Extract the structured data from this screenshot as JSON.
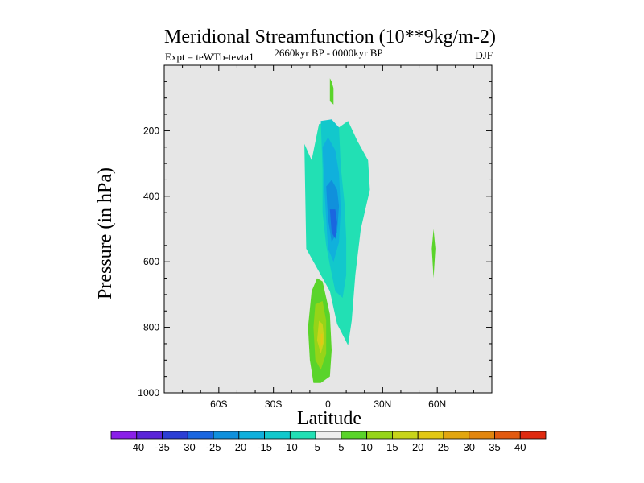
{
  "chart_data": {
    "type": "heatmap",
    "title": "Meridional Streamfunction (10**9kg/m-2)",
    "left_label": "Expt = teWTb-tevta1",
    "center_label": "2660kyr BP - 0000kyr BP",
    "right_label": "DJF",
    "xlabel": "Latitude",
    "ylabel": "Pressure (in hPa)",
    "xlim": [
      -90,
      90
    ],
    "ylim": [
      1000,
      0
    ],
    "x_ticks": [
      {
        "value": -60,
        "label": "60S"
      },
      {
        "value": -30,
        "label": "30S"
      },
      {
        "value": 0,
        "label": "0"
      },
      {
        "value": 30,
        "label": "30N"
      },
      {
        "value": 60,
        "label": "60N"
      }
    ],
    "y_ticks": [
      {
        "value": 200,
        "label": "200"
      },
      {
        "value": 400,
        "label": "400"
      },
      {
        "value": 600,
        "label": "600"
      },
      {
        "value": 800,
        "label": "800"
      },
      {
        "value": 1000,
        "label": "1000"
      }
    ],
    "background_color": "#e6e6e6",
    "colorbar": {
      "levels": [
        "-40",
        "-35",
        "-30",
        "-25",
        "-20",
        "-15",
        "-10",
        "-5",
        "5",
        "10",
        "15",
        "20",
        "25",
        "30",
        "35",
        "40"
      ],
      "colors": [
        "#8a20e8",
        "#5a24d8",
        "#2c3ed4",
        "#1a66e0",
        "#1090dc",
        "#10b0dc",
        "#12c8cc",
        "#22e0b4",
        "#eeeeee",
        "#5ad42a",
        "#96d418",
        "#c8d41a",
        "#e2c814",
        "#e2a610",
        "#e2860e",
        "#e25a10",
        "#e02a10"
      ]
    },
    "regions": [
      {
        "name": "upper-negative-cell",
        "color": "#22e0b4",
        "points": [
          [
            -13,
            240
          ],
          [
            -12,
            560
          ],
          [
            -6,
            620
          ],
          [
            1,
            690
          ],
          [
            5,
            790
          ],
          [
            11,
            855
          ],
          [
            13,
            780
          ],
          [
            15,
            640
          ],
          [
            18,
            500
          ],
          [
            23,
            380
          ],
          [
            22,
            290
          ],
          [
            16,
            230
          ],
          [
            11,
            170
          ],
          [
            6,
            190
          ],
          [
            1,
            170
          ],
          [
            -5,
            180
          ],
          [
            -9,
            290
          ]
        ]
      },
      {
        "name": "upper-negative-cell",
        "color": "#12c8cc",
        "points": [
          [
            -4,
            170
          ],
          [
            -3,
            320
          ],
          [
            -3,
            450
          ],
          [
            -1,
            550
          ],
          [
            1,
            610
          ],
          [
            4,
            690
          ],
          [
            8,
            710
          ],
          [
            10,
            640
          ],
          [
            10,
            530
          ],
          [
            9,
            420
          ],
          [
            7,
            310
          ],
          [
            6,
            190
          ],
          [
            2,
            165
          ]
        ]
      },
      {
        "name": "upper-negative-cell",
        "color": "#10b0dc",
        "points": [
          [
            -3,
            250
          ],
          [
            -2,
            380
          ],
          [
            -1,
            470
          ],
          [
            0,
            560
          ],
          [
            3,
            600
          ],
          [
            6,
            540
          ],
          [
            7,
            440
          ],
          [
            6,
            330
          ],
          [
            4,
            260
          ],
          [
            0,
            220
          ]
        ]
      },
      {
        "name": "upper-negative-cell",
        "color": "#1090dc",
        "points": [
          [
            -1,
            370
          ],
          [
            0,
            470
          ],
          [
            2,
            540
          ],
          [
            5,
            510
          ],
          [
            6,
            430
          ],
          [
            5,
            380
          ],
          [
            2,
            350
          ]
        ]
      },
      {
        "name": "upper-negative-cell",
        "color": "#1a66e0",
        "points": [
          [
            1,
            440
          ],
          [
            2,
            510
          ],
          [
            4,
            530
          ],
          [
            5,
            480
          ],
          [
            4,
            440
          ]
        ]
      },
      {
        "name": "lower-positive-cell",
        "color": "#5ad42a",
        "points": [
          [
            -9,
            690
          ],
          [
            -11,
            800
          ],
          [
            -10,
            900
          ],
          [
            -8,
            970
          ],
          [
            -4,
            970
          ],
          [
            1,
            950
          ],
          [
            2,
            870
          ],
          [
            1,
            760
          ],
          [
            -3,
            660
          ],
          [
            -6,
            650
          ]
        ]
      },
      {
        "name": "lower-positive-cell",
        "color": "#96d418",
        "points": [
          [
            -7,
            730
          ],
          [
            -8,
            800
          ],
          [
            -7,
            900
          ],
          [
            -4,
            930
          ],
          [
            -1,
            880
          ],
          [
            -1,
            780
          ],
          [
            -3,
            720
          ]
        ]
      },
      {
        "name": "lower-positive-cell",
        "color": "#c8d41a",
        "points": [
          [
            -5,
            780
          ],
          [
            -6,
            840
          ],
          [
            -4,
            880
          ],
          [
            -2,
            840
          ],
          [
            -3,
            790
          ]
        ]
      },
      {
        "name": "lower-positive-cell",
        "color": "#e2c814",
        "points": [
          [
            -4,
            820
          ],
          [
            -4,
            860
          ],
          [
            -3,
            850
          ],
          [
            -3,
            820
          ]
        ]
      },
      {
        "name": "upper-tongue",
        "color": "#5ad42a",
        "points": [
          [
            1,
            40
          ],
          [
            1,
            110
          ],
          [
            3,
            120
          ],
          [
            3,
            70
          ],
          [
            2,
            50
          ]
        ]
      },
      {
        "name": "northern-patch",
        "color": "#5ad42a",
        "points": [
          [
            58,
            500
          ],
          [
            57,
            560
          ],
          [
            58,
            650
          ],
          [
            59,
            560
          ]
        ]
      }
    ]
  }
}
